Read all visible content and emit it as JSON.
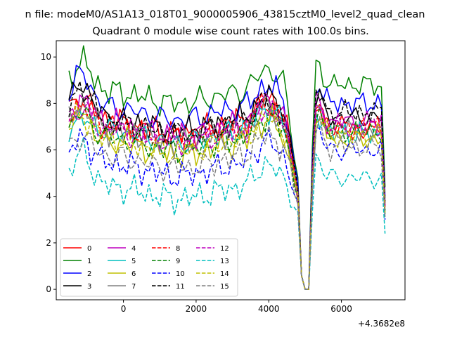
{
  "chart_data": {
    "type": "line",
    "suptitle": "n file: modeM0/AS1A13_018T01_9000005906_43815cztM0_level2_quad_clean",
    "title": "Quadrant 0 module wise count rates with 100.0s bins.",
    "xlabel": "",
    "ylabel": "",
    "x_offset_label": "+4.3682e8",
    "xlim": [
      -1850,
      7750
    ],
    "ylim": [
      -0.45,
      10.7
    ],
    "xticks": [
      0,
      2000,
      4000,
      6000
    ],
    "xtick_labels": [
      "0",
      "2000",
      "4000",
      "6000"
    ],
    "yticks": [
      0,
      2,
      4,
      6,
      8,
      10
    ],
    "ytick_labels": [
      "0",
      "2",
      "4",
      "6",
      "8",
      "10"
    ],
    "grid": false,
    "legend_position": "lower-left",
    "legend_columns": 4,
    "x_range": [
      -1500,
      7250
    ],
    "x_step": 100,
    "gap_range": [
      4950,
      5150
    ],
    "series": [
      {
        "name": "0",
        "color": "#ff0000",
        "dash": "solid",
        "base": 7.3,
        "bump": 1.0,
        "post": 6.9,
        "end": 1.9,
        "seed": 1
      },
      {
        "name": "1",
        "color": "#008000",
        "dash": "solid",
        "base": 8.6,
        "bump": 1.2,
        "post": 8.8,
        "end": 2.2,
        "seed": 2
      },
      {
        "name": "2",
        "color": "#0000ff",
        "dash": "solid",
        "base": 7.9,
        "bump": 1.4,
        "post": 8.0,
        "end": 2.0,
        "seed": 3
      },
      {
        "name": "3",
        "color": "#000000",
        "dash": "solid",
        "base": 7.4,
        "bump": 1.5,
        "post": 7.4,
        "end": 1.9,
        "seed": 4
      },
      {
        "name": "4",
        "color": "#bf00bf",
        "dash": "solid",
        "base": 7.2,
        "bump": 1.0,
        "post": 7.2,
        "end": 1.8,
        "seed": 5
      },
      {
        "name": "5",
        "color": "#00bfbf",
        "dash": "solid",
        "base": 6.9,
        "bump": 0.4,
        "post": 6.7,
        "end": 1.5,
        "seed": 6
      },
      {
        "name": "6",
        "color": "#bfbf00",
        "dash": "solid",
        "base": 6.4,
        "bump": 1.2,
        "post": 6.5,
        "end": 1.6,
        "seed": 7
      },
      {
        "name": "7",
        "color": "#808080",
        "dash": "solid",
        "base": 6.9,
        "bump": 1.0,
        "post": 6.8,
        "end": 1.7,
        "seed": 8
      },
      {
        "name": "8",
        "color": "#ff0000",
        "dash": "dashed",
        "base": 7.1,
        "bump": 0.9,
        "post": 7.0,
        "end": 1.8,
        "seed": 9
      },
      {
        "name": "9",
        "color": "#008000",
        "dash": "dashed",
        "base": 6.6,
        "bump": 1.0,
        "post": 6.8,
        "end": 1.7,
        "seed": 10
      },
      {
        "name": "10",
        "color": "#0000ff",
        "dash": "dashed",
        "base": 5.5,
        "bump": 1.0,
        "post": 6.0,
        "end": 1.5,
        "seed": 11
      },
      {
        "name": "11",
        "color": "#000000",
        "dash": "dashed",
        "base": 7.3,
        "bump": 1.4,
        "post": 7.6,
        "end": 1.9,
        "seed": 12
      },
      {
        "name": "12",
        "color": "#bf00bf",
        "dash": "dashed",
        "base": 6.9,
        "bump": 0.8,
        "post": 7.0,
        "end": 1.8,
        "seed": 13
      },
      {
        "name": "13",
        "color": "#00bfbf",
        "dash": "dashed",
        "base": 4.5,
        "bump": 1.4,
        "post": 4.8,
        "end": 1.2,
        "seed": 14
      },
      {
        "name": "14",
        "color": "#bfbf00",
        "dash": "dashed",
        "base": 6.5,
        "bump": 1.0,
        "post": 6.6,
        "end": 1.7,
        "seed": 15
      },
      {
        "name": "15",
        "color": "#808080",
        "dash": "dashed",
        "base": 5.8,
        "bump": 0.8,
        "post": 6.1,
        "end": 1.6,
        "seed": 16
      }
    ]
  }
}
